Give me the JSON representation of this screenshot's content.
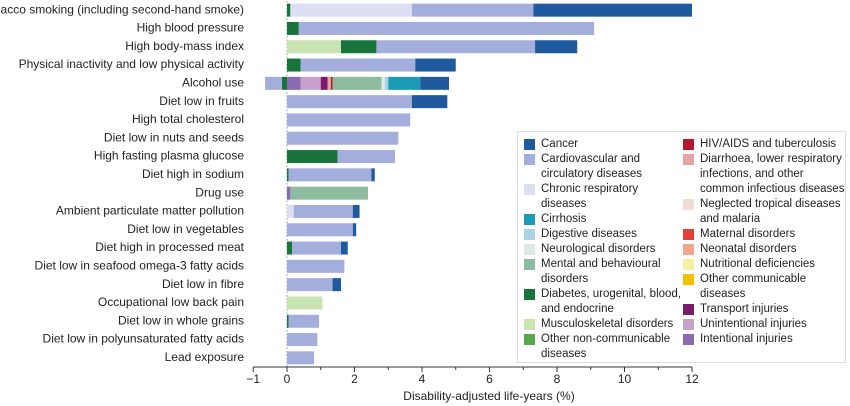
{
  "chart_data": {
    "type": "stacked-barh",
    "xlabel": "Disability-adjusted life-years (%)",
    "categories": [
      "Tobacco smoking (including second-hand smoke)",
      "High blood pressure",
      "High body-mass index",
      "Physical inactivity and low physical activity",
      "Alcohol use",
      "Diet low in fruits",
      "High total cholesterol",
      "Diet low in nuts and seeds",
      "High fasting plasma glucose",
      "Diet high in sodium",
      "Drug use",
      "Ambient particulate matter pollution",
      "Diet low in vegetables",
      "Diet high in processed meat",
      "Diet low in seafood omega-3 fatty acids",
      "Diet low in fibre",
      "Occupational low back pain",
      "Diet low in whole grains",
      "Diet low in polyunsaturated fatty acids",
      "Lead exposure"
    ],
    "series": [
      {
        "name": "Cancer",
        "color": "#1f5a9e",
        "values": [
          4.7,
          0,
          1.25,
          1.2,
          0.85,
          1.05,
          0,
          0,
          0,
          0.1,
          0,
          0.2,
          0.1,
          0.2,
          0,
          0.25,
          0,
          0,
          0,
          0
        ]
      },
      {
        "name": "Cardiovascular and circulatory diseases",
        "color": "#a3aedc",
        "values": [
          3.6,
          8.75,
          4.7,
          3.4,
          -0.5,
          3.7,
          3.65,
          3.3,
          1.7,
          2.45,
          0,
          1.75,
          1.95,
          1.45,
          1.7,
          1.35,
          0,
          0.9,
          0.9,
          0.8
        ]
      },
      {
        "name": "Chronic respiratory diseases",
        "color": "#dcdff2",
        "values": [
          3.6,
          0,
          0,
          0,
          0,
          0,
          0,
          0,
          0,
          0,
          0,
          0.2,
          0,
          0,
          0,
          0,
          0,
          0,
          0,
          0
        ]
      },
      {
        "name": "Cirrhosis",
        "color": "#1b9bb7",
        "values": [
          0,
          0,
          0,
          0,
          0.95,
          0,
          0,
          0,
          0,
          0,
          0,
          0,
          0,
          0,
          0,
          0,
          0,
          0,
          0,
          0
        ]
      },
      {
        "name": "Digestive diseases",
        "color": "#a9d3e6",
        "values": [
          0,
          0,
          0,
          0,
          0.1,
          0,
          0,
          0,
          0,
          0,
          0,
          0,
          0,
          0,
          0,
          0,
          0,
          0,
          0,
          0
        ]
      },
      {
        "name": "Neurological disorders",
        "color": "#dfe9e4",
        "values": [
          0,
          0,
          0,
          0,
          0.1,
          0,
          0,
          0,
          0,
          0,
          0,
          0,
          0,
          0,
          0,
          0,
          0,
          0,
          0,
          0
        ]
      },
      {
        "name": "Mental and behavioural disorders",
        "color": "#8dbb9e",
        "values": [
          0,
          0,
          0,
          0,
          1.45,
          0,
          0,
          0,
          0,
          0,
          2.3,
          0,
          0,
          0,
          0,
          0,
          0,
          0,
          0,
          0
        ]
      },
      {
        "name": "Diabetes, urogenital, blood, and endocrine",
        "color": "#17743b",
        "values": [
          0.1,
          0.35,
          1.05,
          0.4,
          -0.15,
          0,
          0,
          0,
          1.5,
          0.05,
          0,
          0,
          0,
          0.15,
          0,
          0,
          0,
          0.05,
          0,
          0
        ]
      },
      {
        "name": "Musculoskeletal disorders",
        "color": "#c9e3b1",
        "values": [
          0,
          0,
          1.6,
          0,
          0,
          0,
          0,
          0,
          0,
          0,
          0,
          0,
          0,
          0,
          0,
          0,
          1.05,
          0,
          0,
          0
        ]
      },
      {
        "name": "Other non-communicable diseases",
        "color": "#56a84a",
        "values": [
          0,
          0,
          0,
          0,
          0,
          0,
          0,
          0,
          0,
          0,
          0,
          0,
          0,
          0,
          0,
          0,
          0,
          0,
          0,
          0
        ]
      },
      {
        "name": "HIV/AIDS and tuberculosis",
        "color": "#b5172f",
        "values": [
          0,
          0,
          0,
          0,
          0.05,
          0,
          0,
          0,
          0,
          0,
          0,
          0,
          0,
          0,
          0,
          0,
          0,
          0,
          0,
          0
        ]
      },
      {
        "name": "Diarrhoea, lower respiratory infections, and other common infectious diseases",
        "color": "#e5a3a3",
        "values": [
          0,
          0,
          0,
          0,
          0.1,
          0,
          0,
          0,
          0,
          0,
          0,
          0,
          0,
          0,
          0,
          0,
          0,
          0,
          0,
          0
        ]
      },
      {
        "name": "Neglected tropical diseases and malaria",
        "color": "#f4dcd6",
        "values": [
          0,
          0,
          0,
          0,
          0,
          0,
          0,
          0,
          0,
          0,
          0,
          0,
          0,
          0,
          0,
          0,
          0,
          0,
          0,
          0
        ]
      },
      {
        "name": "Maternal disorders",
        "color": "#e3403a",
        "values": [
          0,
          0,
          0,
          0,
          0,
          0,
          0,
          0,
          0,
          0,
          0,
          0,
          0,
          0,
          0,
          0,
          0,
          0,
          0,
          0
        ]
      },
      {
        "name": "Neonatal disorders",
        "color": "#f2a48c",
        "values": [
          0,
          0,
          0,
          0,
          0,
          0,
          0,
          0,
          0,
          0,
          0,
          0,
          0,
          0,
          0,
          0,
          0,
          0,
          0,
          0
        ]
      },
      {
        "name": "Nutritional deficiencies",
        "color": "#f6f0a6",
        "values": [
          0,
          0,
          0,
          0,
          0,
          0,
          0,
          0,
          0,
          0,
          0,
          0,
          0,
          0,
          0,
          0,
          0,
          0,
          0,
          0
        ]
      },
      {
        "name": "Other communicable diseases",
        "color": "#f2c200",
        "values": [
          0,
          0,
          0,
          0,
          0,
          0,
          0,
          0,
          0,
          0,
          0,
          0,
          0,
          0,
          0,
          0,
          0,
          0,
          0,
          0
        ]
      },
      {
        "name": "Transport injuries",
        "color": "#7b1b6b",
        "values": [
          0,
          0,
          0,
          0,
          0.2,
          0,
          0,
          0,
          0,
          0,
          0,
          0,
          0,
          0,
          0,
          0,
          0,
          0,
          0,
          0
        ]
      },
      {
        "name": "Unintentional injuries",
        "color": "#c9a0cc",
        "values": [
          0,
          0,
          0,
          0,
          0.6,
          0,
          0,
          0,
          0,
          0,
          0,
          0,
          0,
          0,
          0,
          0,
          0,
          0,
          0,
          0
        ]
      },
      {
        "name": "Intentional injuries",
        "color": "#8a6bb2",
        "values": [
          0,
          0,
          0,
          0,
          0.4,
          0,
          0,
          0,
          0,
          0,
          0.1,
          0,
          0,
          0,
          0,
          0,
          0,
          0,
          0,
          0
        ]
      }
    ],
    "xlim": [
      -1,
      12
    ],
    "xticks": [
      {
        "value": -1,
        "label": "−1"
      },
      0,
      2,
      4,
      6,
      8,
      10,
      12
    ],
    "xminor_ticks": [
      1,
      3,
      5,
      7,
      9,
      11
    ]
  }
}
